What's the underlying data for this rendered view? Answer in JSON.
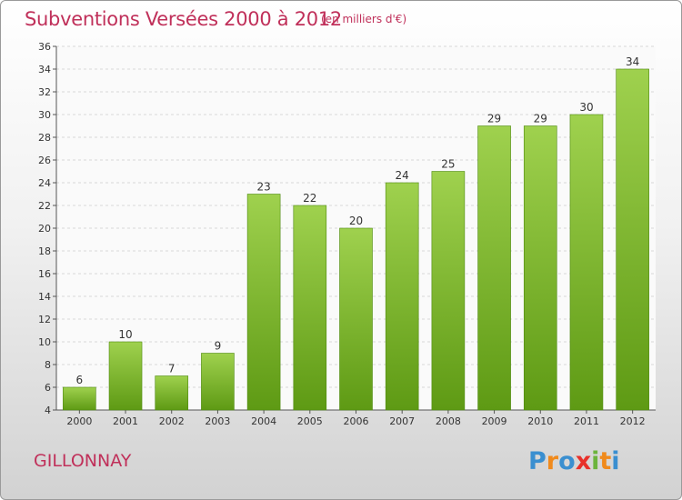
{
  "title": "Subventions Versées 2000 à 2012",
  "subtitle": "(en milliers d'€)",
  "commune": "GILLONNAY",
  "logo_text": "Proxiti",
  "colors": {
    "title": "#c0305a",
    "bar_top": "#9fd14e",
    "bar_bottom": "#5e9a14"
  },
  "chart_data": {
    "type": "bar",
    "title": "Subventions Versées 2000 à 2012",
    "subtitle": "(en milliers d'€)",
    "categories": [
      "2000",
      "2001",
      "2002",
      "2003",
      "2004",
      "2005",
      "2006",
      "2007",
      "2008",
      "2009",
      "2010",
      "2011",
      "2012"
    ],
    "values": [
      6,
      10,
      7,
      9,
      23,
      22,
      20,
      24,
      25,
      29,
      29,
      30,
      34
    ],
    "ylim": [
      4,
      36
    ],
    "yticks": [
      4,
      6,
      8,
      10,
      12,
      14,
      16,
      18,
      20,
      22,
      24,
      26,
      28,
      30,
      32,
      34,
      36
    ],
    "grid": true,
    "legend": "none"
  }
}
